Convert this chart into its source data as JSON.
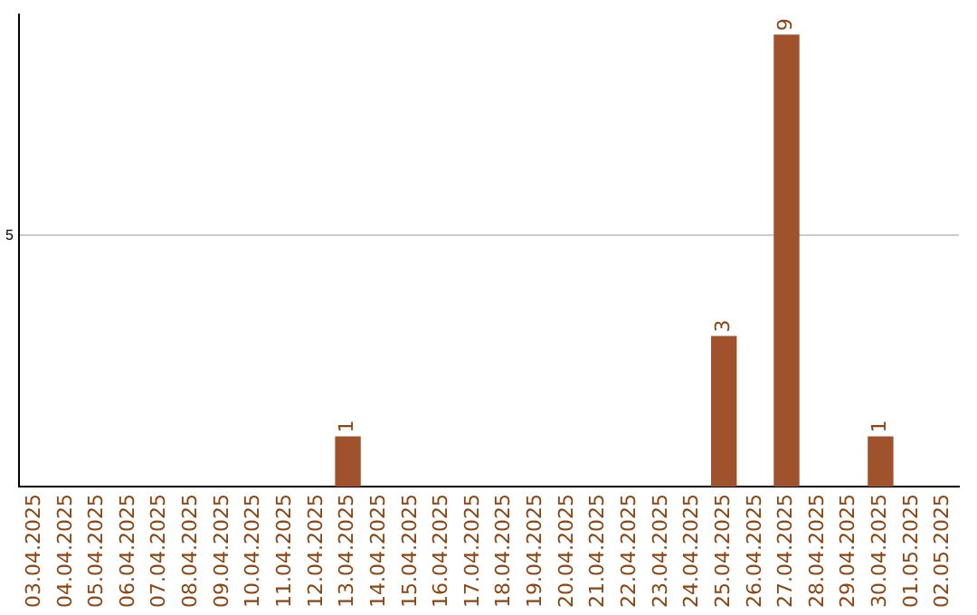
{
  "chart_data": {
    "type": "bar",
    "categories": [
      "03.04.2025",
      "04.04.2025",
      "05.04.2025",
      "06.04.2025",
      "07.04.2025",
      "08.04.2025",
      "09.04.2025",
      "10.04.2025",
      "11.04.2025",
      "12.04.2025",
      "13.04.2025",
      "14.04.2025",
      "15.04.2025",
      "16.04.2025",
      "17.04.2025",
      "18.04.2025",
      "19.04.2025",
      "20.04.2025",
      "21.04.2025",
      "22.04.2025",
      "23.04.2025",
      "24.04.2025",
      "25.04.2025",
      "26.04.2025",
      "27.04.2025",
      "28.04.2025",
      "29.04.2025",
      "30.04.2025",
      "01.05.2025",
      "02.05.2025"
    ],
    "values": [
      0,
      0,
      0,
      0,
      0,
      0,
      0,
      0,
      0,
      0,
      1,
      0,
      0,
      0,
      0,
      0,
      0,
      0,
      0,
      0,
      0,
      0,
      3,
      0,
      9,
      0,
      0,
      1,
      0,
      0
    ],
    "value_labels": [
      null,
      null,
      null,
      null,
      null,
      null,
      null,
      null,
      null,
      null,
      "1",
      null,
      null,
      null,
      null,
      null,
      null,
      null,
      null,
      null,
      null,
      null,
      "3",
      null,
      "9",
      null,
      null,
      "1",
      null,
      null
    ],
    "color": "#a0522d",
    "ylim": [
      0,
      9.4
    ],
    "yticks": [
      5
    ],
    "grid": "y",
    "legend": false
  }
}
